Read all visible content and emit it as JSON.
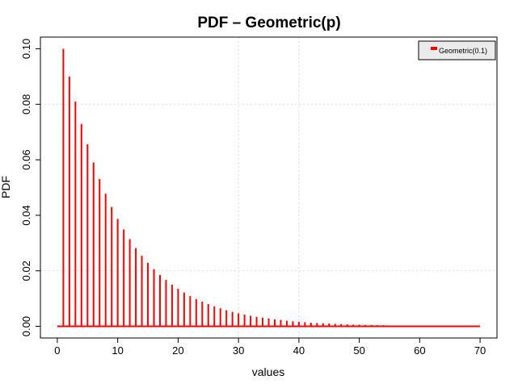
{
  "chart_data": {
    "type": "bar",
    "title": "PDF – Geometric(p)",
    "xlabel": "values",
    "ylabel": "PDF",
    "xlim": [
      -2.8,
      72.8
    ],
    "ylim": [
      -0.0042,
      0.1042
    ],
    "xticks": [
      0,
      10,
      20,
      30,
      40,
      50,
      60,
      70
    ],
    "yticks": [
      0.0,
      0.02,
      0.04,
      0.06,
      0.08,
      0.1
    ],
    "ytick_labels": [
      "0.00",
      "0.02",
      "0.04",
      "0.06",
      "0.08",
      "0.10"
    ],
    "grid": true,
    "legend": {
      "position": "top-right",
      "entries": [
        "Geometric(0.1)"
      ]
    },
    "baseline": [
      0,
      70
    ],
    "color": "#ff0000",
    "series": [
      {
        "name": "Geometric(0.1)",
        "x": [
          1,
          2,
          3,
          4,
          5,
          6,
          7,
          8,
          9,
          10,
          11,
          12,
          13,
          14,
          15,
          16,
          17,
          18,
          19,
          20,
          21,
          22,
          23,
          24,
          25,
          26,
          27,
          28,
          29,
          30,
          31,
          32,
          33,
          34,
          35,
          36,
          37,
          38,
          39,
          40,
          41,
          42,
          43,
          44,
          45,
          46,
          47,
          48,
          49,
          50,
          51,
          52,
          53,
          54,
          55,
          56,
          57,
          58,
          59,
          60
        ],
        "values": [
          0.1,
          0.09,
          0.081,
          0.0729,
          0.0656,
          0.059,
          0.0531,
          0.0478,
          0.043,
          0.0387,
          0.0349,
          0.0314,
          0.0282,
          0.0254,
          0.0229,
          0.0206,
          0.0185,
          0.0167,
          0.015,
          0.0135,
          0.0122,
          0.0109,
          0.0098,
          0.0089,
          0.008,
          0.0072,
          0.0065,
          0.0058,
          0.0052,
          0.0047,
          0.0042,
          0.0038,
          0.0034,
          0.0031,
          0.0028,
          0.0025,
          0.0023,
          0.002,
          0.0018,
          0.0016,
          0.0015,
          0.0013,
          0.0012,
          0.0011,
          0.001,
          0.0009,
          0.0008,
          0.0007,
          0.0006,
          0.0006,
          0.0005,
          0.0005,
          0.0004,
          0.0004,
          0.0003,
          0.0003,
          0.0003,
          0.0002,
          0.0002,
          0.0002
        ]
      }
    ]
  }
}
